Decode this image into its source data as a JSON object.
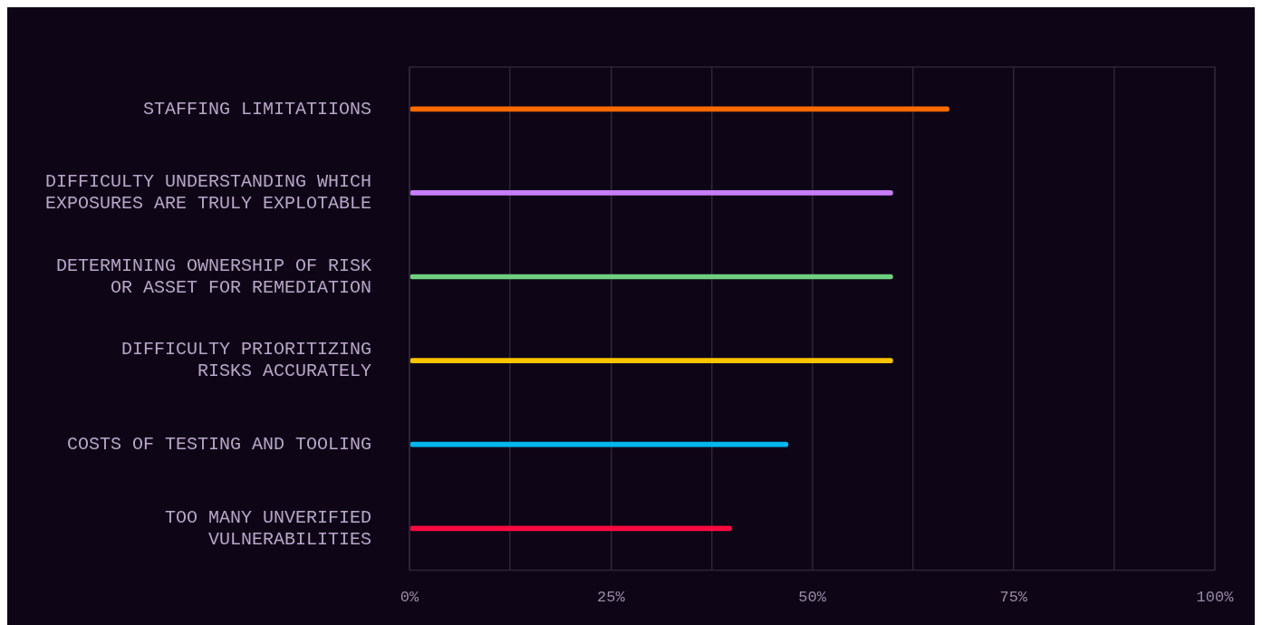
{
  "chart_data": {
    "type": "bar",
    "orientation": "horizontal",
    "categories": [
      "STAFFING LIMITATIIONS",
      "DIFFICULTY UNDERSTANDING WHICH\nEXPOSURES ARE TRULY EXPLOTABLE",
      "DETERMINING OWNERSHIP OF RISK\nOR ASSET FOR REMEDIATION",
      "DIFFICULTY PRIORITIZING\nRISKS ACCURATELY",
      "COSTS OF TESTING AND TOOLING",
      "TOO MANY UNVERIFIED\nVULNERABILITIES"
    ],
    "values": [
      67,
      60,
      60,
      60,
      47,
      40
    ],
    "colors": [
      "#ff6a00",
      "#c77dff",
      "#6fcf7f",
      "#ffc400",
      "#00b7f0",
      "#ff0a40"
    ],
    "xlim": [
      0,
      100
    ],
    "xticks": [
      {
        "value": 0,
        "label": "0%"
      },
      {
        "value": 12.5,
        "label": null
      },
      {
        "value": 25,
        "label": "25%"
      },
      {
        "value": 37.5,
        "label": null
      },
      {
        "value": 50,
        "label": "50%"
      },
      {
        "value": 62.5,
        "label": null
      },
      {
        "value": 75,
        "label": "75%"
      },
      {
        "value": 87.5,
        "label": null
      },
      {
        "value": 100,
        "label": "100%"
      }
    ],
    "grid": "x",
    "legend": false
  }
}
